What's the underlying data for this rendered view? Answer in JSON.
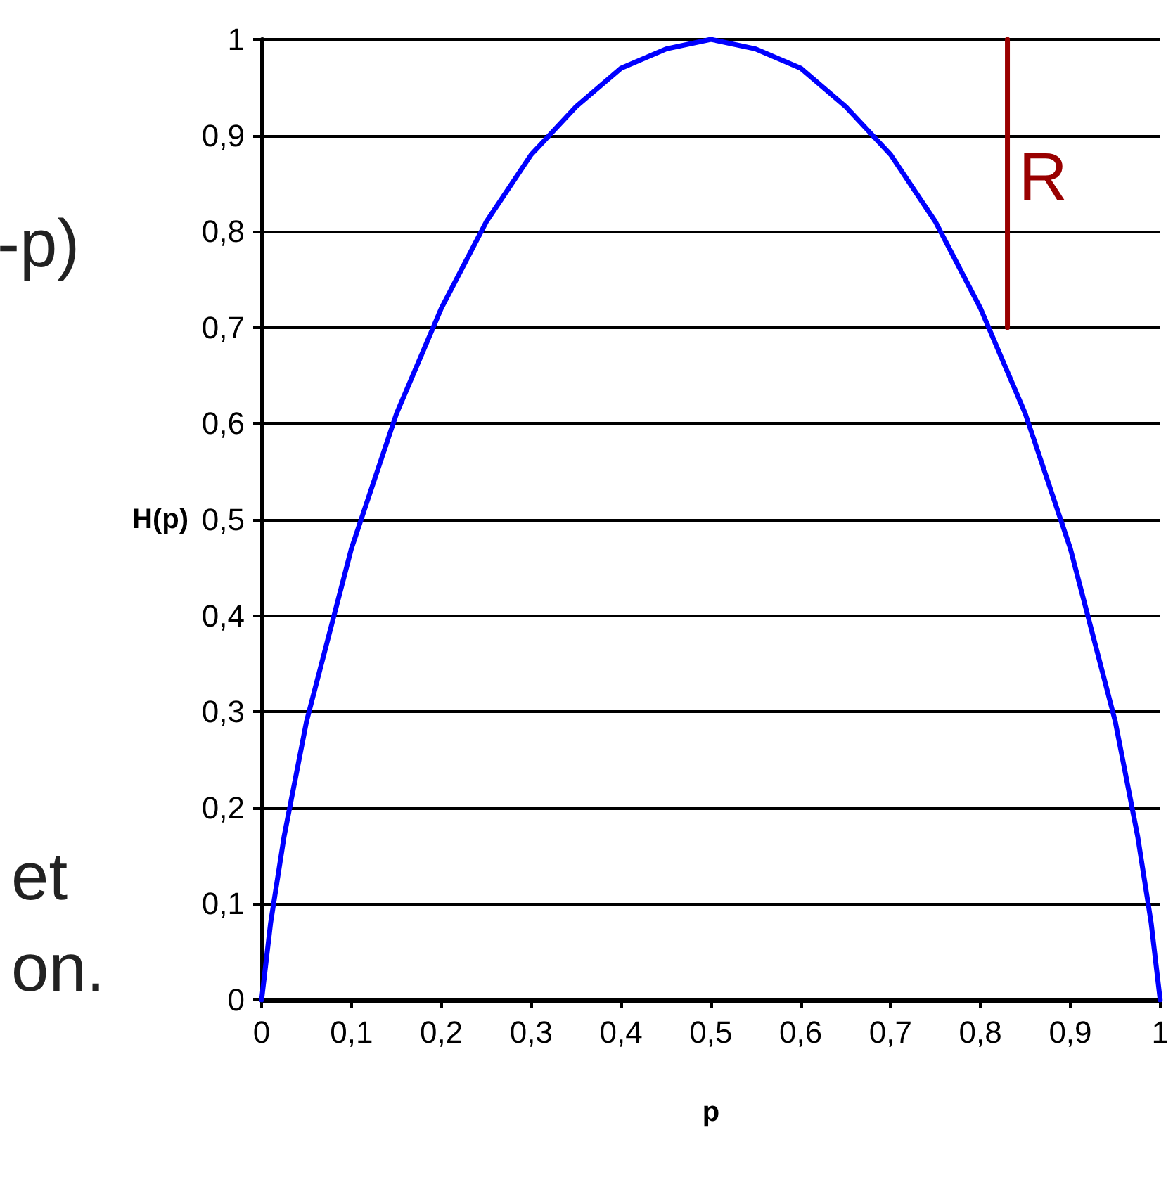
{
  "chart_data": {
    "type": "line",
    "xlabel": "p",
    "ylabel": "H(p)",
    "annotations": [
      "-p)",
      "et",
      "on."
    ],
    "series": [
      {
        "color": "#0000ff",
        "x": [
          0,
          0.01,
          0.025,
          0.05,
          0.075,
          0.1,
          0.15,
          0.2,
          0.25,
          0.3,
          0.35,
          0.4,
          0.45,
          0.5,
          0.55,
          0.6,
          0.65,
          0.7,
          0.75,
          0.8,
          0.85,
          0.9,
          0.925,
          0.95,
          0.975,
          0.99,
          1
        ],
        "values": [
          0,
          0.08,
          0.17,
          0.29,
          0.38,
          0.47,
          0.61,
          0.72,
          0.81,
          0.88,
          0.93,
          0.97,
          0.99,
          1,
          0.99,
          0.97,
          0.93,
          0.88,
          0.81,
          0.72,
          0.61,
          0.47,
          0.38,
          0.29,
          0.17,
          0.08,
          0
        ]
      },
      {
        "name": "R",
        "color": "#990000",
        "x": [
          0.83,
          0.83
        ],
        "values": [
          0.7,
          1
        ]
      }
    ],
    "xlim": [
      0,
      1
    ],
    "ylim": [
      0,
      1
    ],
    "xticks": [
      0,
      {
        "value": 0.1,
        "label": "0,1"
      },
      {
        "value": 0.2,
        "label": "0,2"
      },
      {
        "value": 0.3,
        "label": "0,3"
      },
      {
        "value": 0.4,
        "label": "0,4"
      },
      {
        "value": 0.5,
        "label": "0,5"
      },
      {
        "value": 0.6,
        "label": "0,6"
      },
      {
        "value": 0.7,
        "label": "0,7"
      },
      {
        "value": 0.8,
        "label": "0,8"
      },
      {
        "value": 0.9,
        "label": "0,9"
      },
      1
    ],
    "yticks": [
      0,
      {
        "value": 0.1,
        "label": "0,1"
      },
      {
        "value": 0.2,
        "label": "0,2"
      },
      {
        "value": 0.3,
        "label": "0,3"
      },
      {
        "value": 0.4,
        "label": "0,4"
      },
      {
        "value": 0.5,
        "label": "0,5"
      },
      {
        "value": 0.6,
        "label": "0,6"
      },
      {
        "value": 0.7,
        "label": "0,7"
      },
      {
        "value": 0.8,
        "label": "0,8"
      },
      {
        "value": 0.9,
        "label": "0,9"
      },
      1
    ],
    "grid": "y",
    "legend": false,
    "marker": "none",
    "line_style": "solid"
  }
}
